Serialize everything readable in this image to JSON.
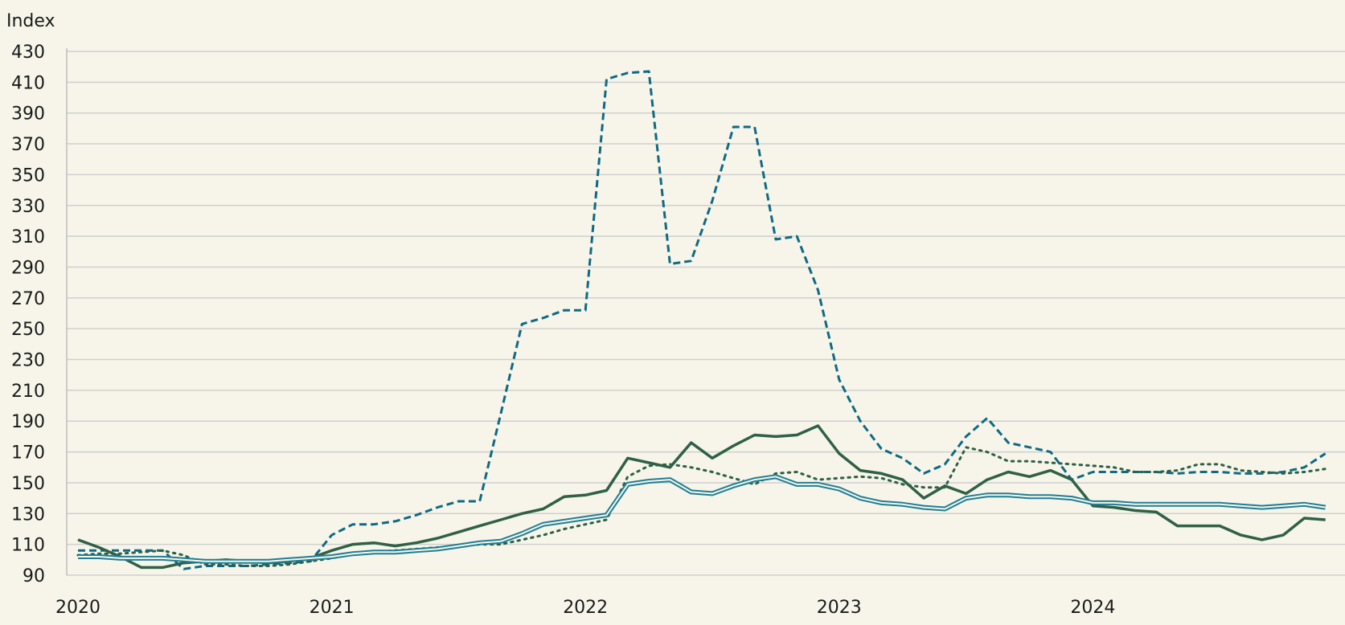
{
  "chart_data": {
    "type": "line",
    "ylabel": "Index",
    "ylim": [
      90,
      430
    ],
    "yticks": [
      90,
      110,
      130,
      150,
      170,
      190,
      210,
      230,
      250,
      270,
      290,
      310,
      330,
      350,
      370,
      390,
      410,
      430
    ],
    "xlim": [
      "2020-01",
      "2024-12"
    ],
    "xticks": [
      "2020",
      "2021",
      "2022",
      "2023",
      "2024"
    ],
    "grid": "horizontal",
    "legend": "none",
    "x": [
      "2020-01",
      "2020-02",
      "2020-03",
      "2020-04",
      "2020-05",
      "2020-06",
      "2020-07",
      "2020-08",
      "2020-09",
      "2020-10",
      "2020-11",
      "2020-12",
      "2021-01",
      "2021-02",
      "2021-03",
      "2021-04",
      "2021-05",
      "2021-06",
      "2021-07",
      "2021-08",
      "2021-09",
      "2021-10",
      "2021-11",
      "2021-12",
      "2022-01",
      "2022-02",
      "2022-03",
      "2022-04",
      "2022-05",
      "2022-06",
      "2022-07",
      "2022-08",
      "2022-09",
      "2022-10",
      "2022-11",
      "2022-12",
      "2023-01",
      "2023-02",
      "2023-03",
      "2023-04",
      "2023-05",
      "2023-06",
      "2023-07",
      "2023-08",
      "2023-09",
      "2023-10",
      "2023-11",
      "2023-12",
      "2024-01",
      "2024-02",
      "2024-03",
      "2024-04",
      "2024-05",
      "2024-06",
      "2024-07",
      "2024-08",
      "2024-09",
      "2024-10",
      "2024-11",
      "2024-12"
    ],
    "series": [
      {
        "style": "dashed",
        "color": "#0e6a85",
        "values": [
          106,
          106,
          106,
          106,
          106,
          94,
          96,
          96,
          96,
          97,
          98,
          99,
          116,
          123,
          123,
          125,
          129,
          134,
          138,
          138,
          195,
          253,
          257,
          262,
          262,
          412,
          416,
          417,
          292,
          294,
          333,
          381,
          381,
          308,
          310,
          275,
          217,
          190,
          172,
          166,
          156,
          162,
          180,
          192,
          176,
          173,
          170,
          152,
          157,
          157,
          157,
          157,
          156,
          157,
          157,
          156,
          156,
          157,
          160,
          169
        ]
      },
      {
        "style": "solid-thick",
        "color": "#2f6048",
        "values": [
          113,
          108,
          102,
          95,
          95,
          98,
          99,
          100,
          99,
          98,
          99,
          101,
          106,
          110,
          111,
          109,
          111,
          114,
          118,
          122,
          126,
          130,
          133,
          141,
          142,
          145,
          166,
          163,
          160,
          176,
          166,
          174,
          181,
          180,
          181,
          187,
          169,
          158,
          156,
          152,
          140,
          148,
          143,
          152,
          157,
          154,
          158,
          152,
          135,
          134,
          132,
          131,
          122,
          122,
          122,
          116,
          113,
          116,
          127,
          126
        ]
      },
      {
        "style": "dotted",
        "color": "#2f6048",
        "values": [
          103,
          104,
          104,
          105,
          106,
          103,
          97,
          97,
          96,
          96,
          97,
          99,
          101,
          104,
          105,
          106,
          107,
          108,
          109,
          110,
          110,
          113,
          116,
          120,
          123,
          126,
          154,
          161,
          162,
          160,
          157,
          153,
          149,
          156,
          157,
          152,
          153,
          154,
          153,
          149,
          147,
          147,
          173,
          170,
          164,
          164,
          163,
          162,
          161,
          160,
          157,
          157,
          158,
          162,
          162,
          158,
          157,
          156,
          157,
          159
        ]
      },
      {
        "style": "double",
        "color": "#1f7f96",
        "values": [
          102,
          102,
          101,
          101,
          101,
          100,
          99,
          99,
          99,
          99,
          100,
          101,
          102,
          104,
          105,
          105,
          106,
          107,
          109,
          111,
          112,
          117,
          123,
          125,
          127,
          129,
          149,
          151,
          152,
          144,
          143,
          148,
          152,
          154,
          149,
          149,
          146,
          140,
          137,
          136,
          134,
          133,
          140,
          142,
          142,
          141,
          141,
          140,
          137,
          137,
          136,
          136,
          136,
          136,
          136,
          135,
          134,
          135,
          136,
          134
        ]
      }
    ]
  }
}
